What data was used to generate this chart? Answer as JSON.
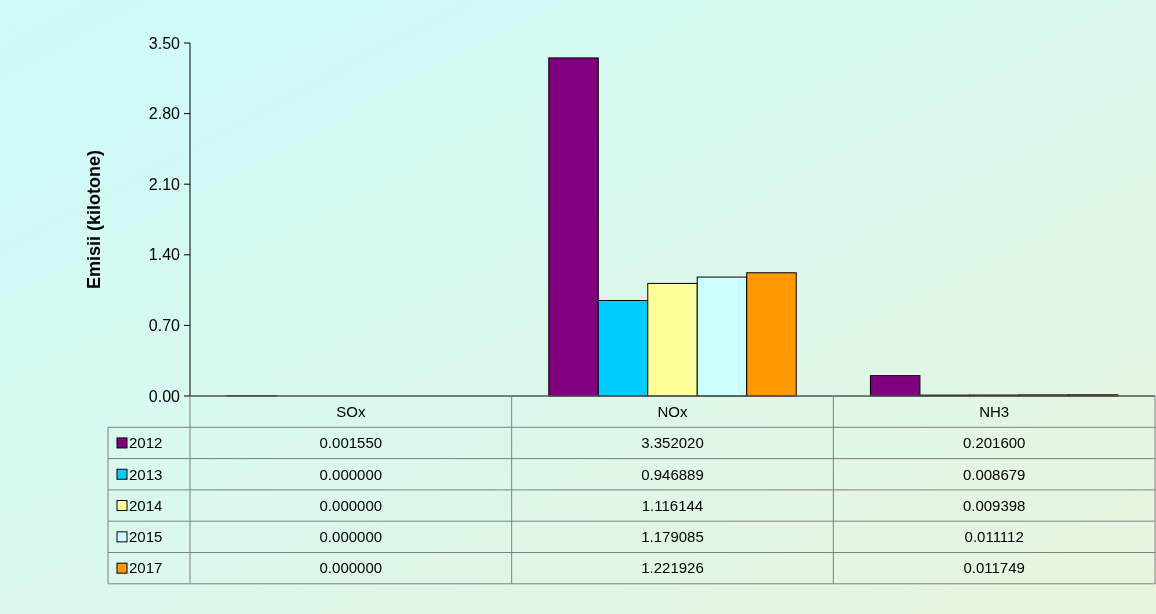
{
  "chart_data": {
    "type": "bar",
    "ylabel": "Emisii (kilotone)",
    "categories": [
      "SOx",
      "NOx",
      "NH3"
    ],
    "series": [
      {
        "name": "2012",
        "color": "#800080",
        "values": [
          0.00155,
          3.35202,
          0.2016
        ],
        "value_labels": [
          "0.001550",
          "3.352020",
          "0.201600"
        ]
      },
      {
        "name": "2013",
        "color": "#00ccff",
        "values": [
          0,
          0.946889,
          0.008679
        ],
        "value_labels": [
          "0.000000",
          "0.946889",
          "0.008679"
        ]
      },
      {
        "name": "2014",
        "color": "#ffff99",
        "values": [
          0,
          1.116144,
          0.009398
        ],
        "value_labels": [
          "0.000000",
          "1.116144",
          "0.009398"
        ]
      },
      {
        "name": "2015",
        "color": "#ccffff",
        "values": [
          0,
          1.179085,
          0.011112
        ],
        "value_labels": [
          "0.000000",
          "1.179085",
          "0.011112"
        ]
      },
      {
        "name": "2017",
        "color": "#ff9900",
        "values": [
          0,
          1.221926,
          0.011749
        ],
        "value_labels": [
          "0.000000",
          "1.221926",
          "0.011749"
        ]
      }
    ],
    "ylim": [
      0,
      3.5
    ],
    "yticks": [
      {
        "value": 0,
        "label": "0.00"
      },
      {
        "value": 0.7,
        "label": "0.70"
      },
      {
        "value": 1.4,
        "label": "1.40"
      },
      {
        "value": 2.1,
        "label": "2.10"
      },
      {
        "value": 2.8,
        "label": "2.80"
      },
      {
        "value": 3.5,
        "label": "3.50"
      }
    ],
    "legend": "bottom"
  }
}
